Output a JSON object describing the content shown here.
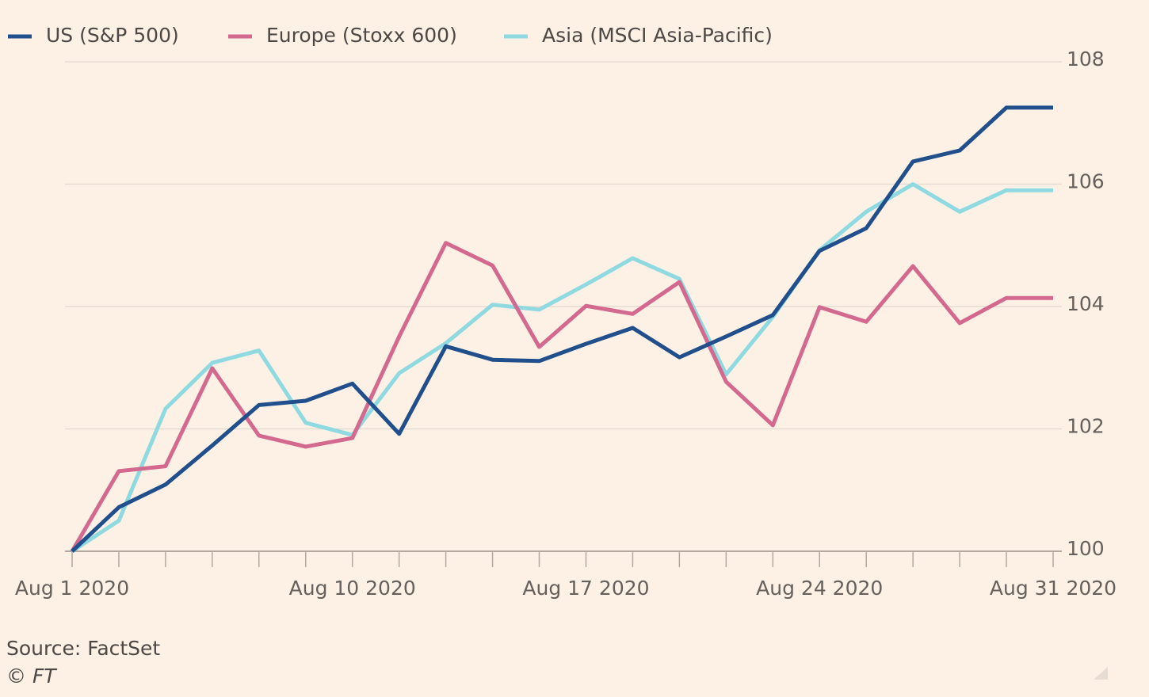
{
  "chart_data": {
    "type": "line",
    "categories": [
      "Aug 1 2020",
      null,
      null,
      null,
      null,
      null,
      "Aug 10 2020",
      null,
      null,
      null,
      null,
      "Aug 17 2020",
      null,
      null,
      null,
      null,
      "Aug 24 2020",
      null,
      null,
      null,
      null,
      "Aug 31 2020"
    ],
    "series": [
      {
        "name": "US (S&P 500)",
        "color": "#204f8c",
        "values": [
          100,
          100.72,
          101.09,
          101.73,
          102.39,
          102.46,
          102.74,
          101.92,
          103.35,
          103.13,
          103.11,
          103.39,
          103.65,
          103.17,
          103.51,
          103.86,
          104.91,
          105.28,
          106.37,
          106.55,
          107.25,
          107.25
        ]
      },
      {
        "name": "Europe (Stoxx 600)",
        "color": "#d4698f",
        "values": [
          100,
          101.31,
          101.39,
          102.99,
          101.89,
          101.71,
          101.85,
          103.51,
          105.04,
          104.67,
          103.34,
          104.01,
          103.88,
          104.4,
          102.77,
          102.06,
          103.99,
          103.75,
          104.66,
          103.73,
          104.14,
          104.14
        ]
      },
      {
        "name": "Asia (MSCI Asia-Pacific)",
        "color": "#8fd9e0",
        "values": [
          100,
          100.5,
          102.33,
          103.08,
          103.28,
          102.1,
          101.9,
          102.91,
          103.4,
          104.03,
          103.95,
          104.36,
          104.79,
          104.45,
          102.89,
          103.83,
          104.92,
          105.55,
          106,
          105.55,
          105.9,
          105.9
        ]
      }
    ],
    "ylim": [
      100,
      108
    ],
    "yticks": [
      100,
      102,
      104,
      106,
      108
    ],
    "grid": true,
    "legend": "top",
    "source": "Source: FactSet",
    "credit": "© FT"
  }
}
